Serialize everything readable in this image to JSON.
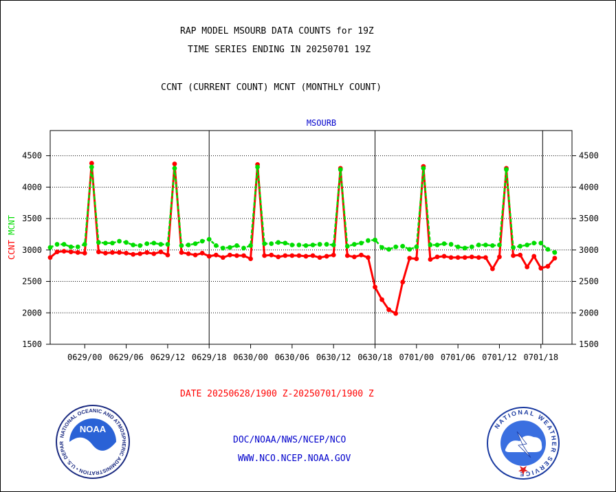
{
  "header": {
    "line1": "RAP MODEL MSOURB DATA COUNTS for 19Z",
    "line2": "TIME SERIES ENDING IN 20250701 19Z",
    "line3": "CCNT (CURRENT COUNT) MCNT (MONTHLY COUNT)"
  },
  "footer": {
    "date_range": "DATE 20250628/1900 Z-20250701/1900 Z",
    "link1": "DOC/NOAA/NWS/NCEP/NCO",
    "link2": "WWW.NCO.NCEP.NOAA.GOV"
  },
  "logos": {
    "left_text": "NOAA",
    "left_ring": "NATIONAL OCEANIC AND ATMOSPHERIC ADMINISTRATION • U.S. DEPARTMENT OF COMMERCE •",
    "right_ring": "NATIONAL WEATHER SERVICE"
  },
  "colors": {
    "ccnt": "#ff0000",
    "mcnt": "#00dd00",
    "title_blue": "#0000cc",
    "date_red": "#ff0000"
  },
  "chart_data": {
    "type": "line",
    "title": "MSOURB",
    "ylabel_parts": [
      {
        "text": "CCNT",
        "color": "#ff0000"
      },
      {
        "text": "MCNT",
        "color": "#00dd00"
      }
    ],
    "ylim": [
      1500,
      4900
    ],
    "yticks": [
      1500,
      2000,
      2500,
      3000,
      3500,
      4000,
      4500
    ],
    "xlim": [
      0,
      75.5
    ],
    "xticks": [
      {
        "x": 5,
        "label": "0629/00"
      },
      {
        "x": 11,
        "label": "0629/06"
      },
      {
        "x": 17,
        "label": "0629/12"
      },
      {
        "x": 23,
        "label": "0629/18"
      },
      {
        "x": 29,
        "label": "0630/00"
      },
      {
        "x": 35,
        "label": "0630/06"
      },
      {
        "x": 41,
        "label": "0630/12"
      },
      {
        "x": 47,
        "label": "0630/18"
      },
      {
        "x": 53,
        "label": "0701/00"
      },
      {
        "x": 59,
        "label": "0701/06"
      },
      {
        "x": 65,
        "label": "0701/12"
      },
      {
        "x": 71,
        "label": "0701/18"
      }
    ],
    "vlines": [
      23,
      47,
      71.25
    ],
    "hgrid": [
      2000,
      2500,
      3000,
      3500,
      4000,
      4500
    ],
    "series": [
      {
        "name": "CCNT",
        "color": "#ff0000",
        "values": [
          2880,
          2970,
          2980,
          2970,
          2960,
          2950,
          4380,
          2970,
          2950,
          2960,
          2960,
          2950,
          2930,
          2940,
          2960,
          2940,
          2970,
          2920,
          4370,
          2960,
          2940,
          2920,
          2950,
          2900,
          2920,
          2880,
          2920,
          2910,
          2910,
          2860,
          4360,
          2910,
          2920,
          2890,
          2910,
          2910,
          2910,
          2900,
          2910,
          2880,
          2900,
          2920,
          4300,
          2910,
          2890,
          2920,
          2880,
          2410,
          2210,
          2050,
          1990,
          2490,
          2870,
          2860,
          4330,
          2850,
          2890,
          2900,
          2880,
          2880,
          2880,
          2890,
          2880,
          2880,
          2700,
          2890,
          4300,
          2910,
          2920,
          2730,
          2900,
          2710,
          2740,
          2870
        ]
      },
      {
        "name": "MCNT",
        "color": "#00dd00",
        "values": [
          3040,
          3090,
          3090,
          3050,
          3050,
          3090,
          4320,
          3120,
          3110,
          3110,
          3140,
          3120,
          3080,
          3070,
          3100,
          3110,
          3090,
          3090,
          4300,
          3070,
          3080,
          3100,
          3140,
          3170,
          3070,
          3030,
          3040,
          3070,
          3030,
          3070,
          4320,
          3100,
          3100,
          3120,
          3110,
          3080,
          3080,
          3070,
          3080,
          3090,
          3090,
          3080,
          4280,
          3060,
          3090,
          3110,
          3150,
          3160,
          3040,
          3010,
          3050,
          3060,
          3010,
          3050,
          4300,
          3080,
          3080,
          3100,
          3090,
          3050,
          3030,
          3050,
          3080,
          3080,
          3070,
          3080,
          4280,
          3040,
          3060,
          3080,
          3110,
          3110,
          3010,
          2960
        ]
      }
    ]
  }
}
